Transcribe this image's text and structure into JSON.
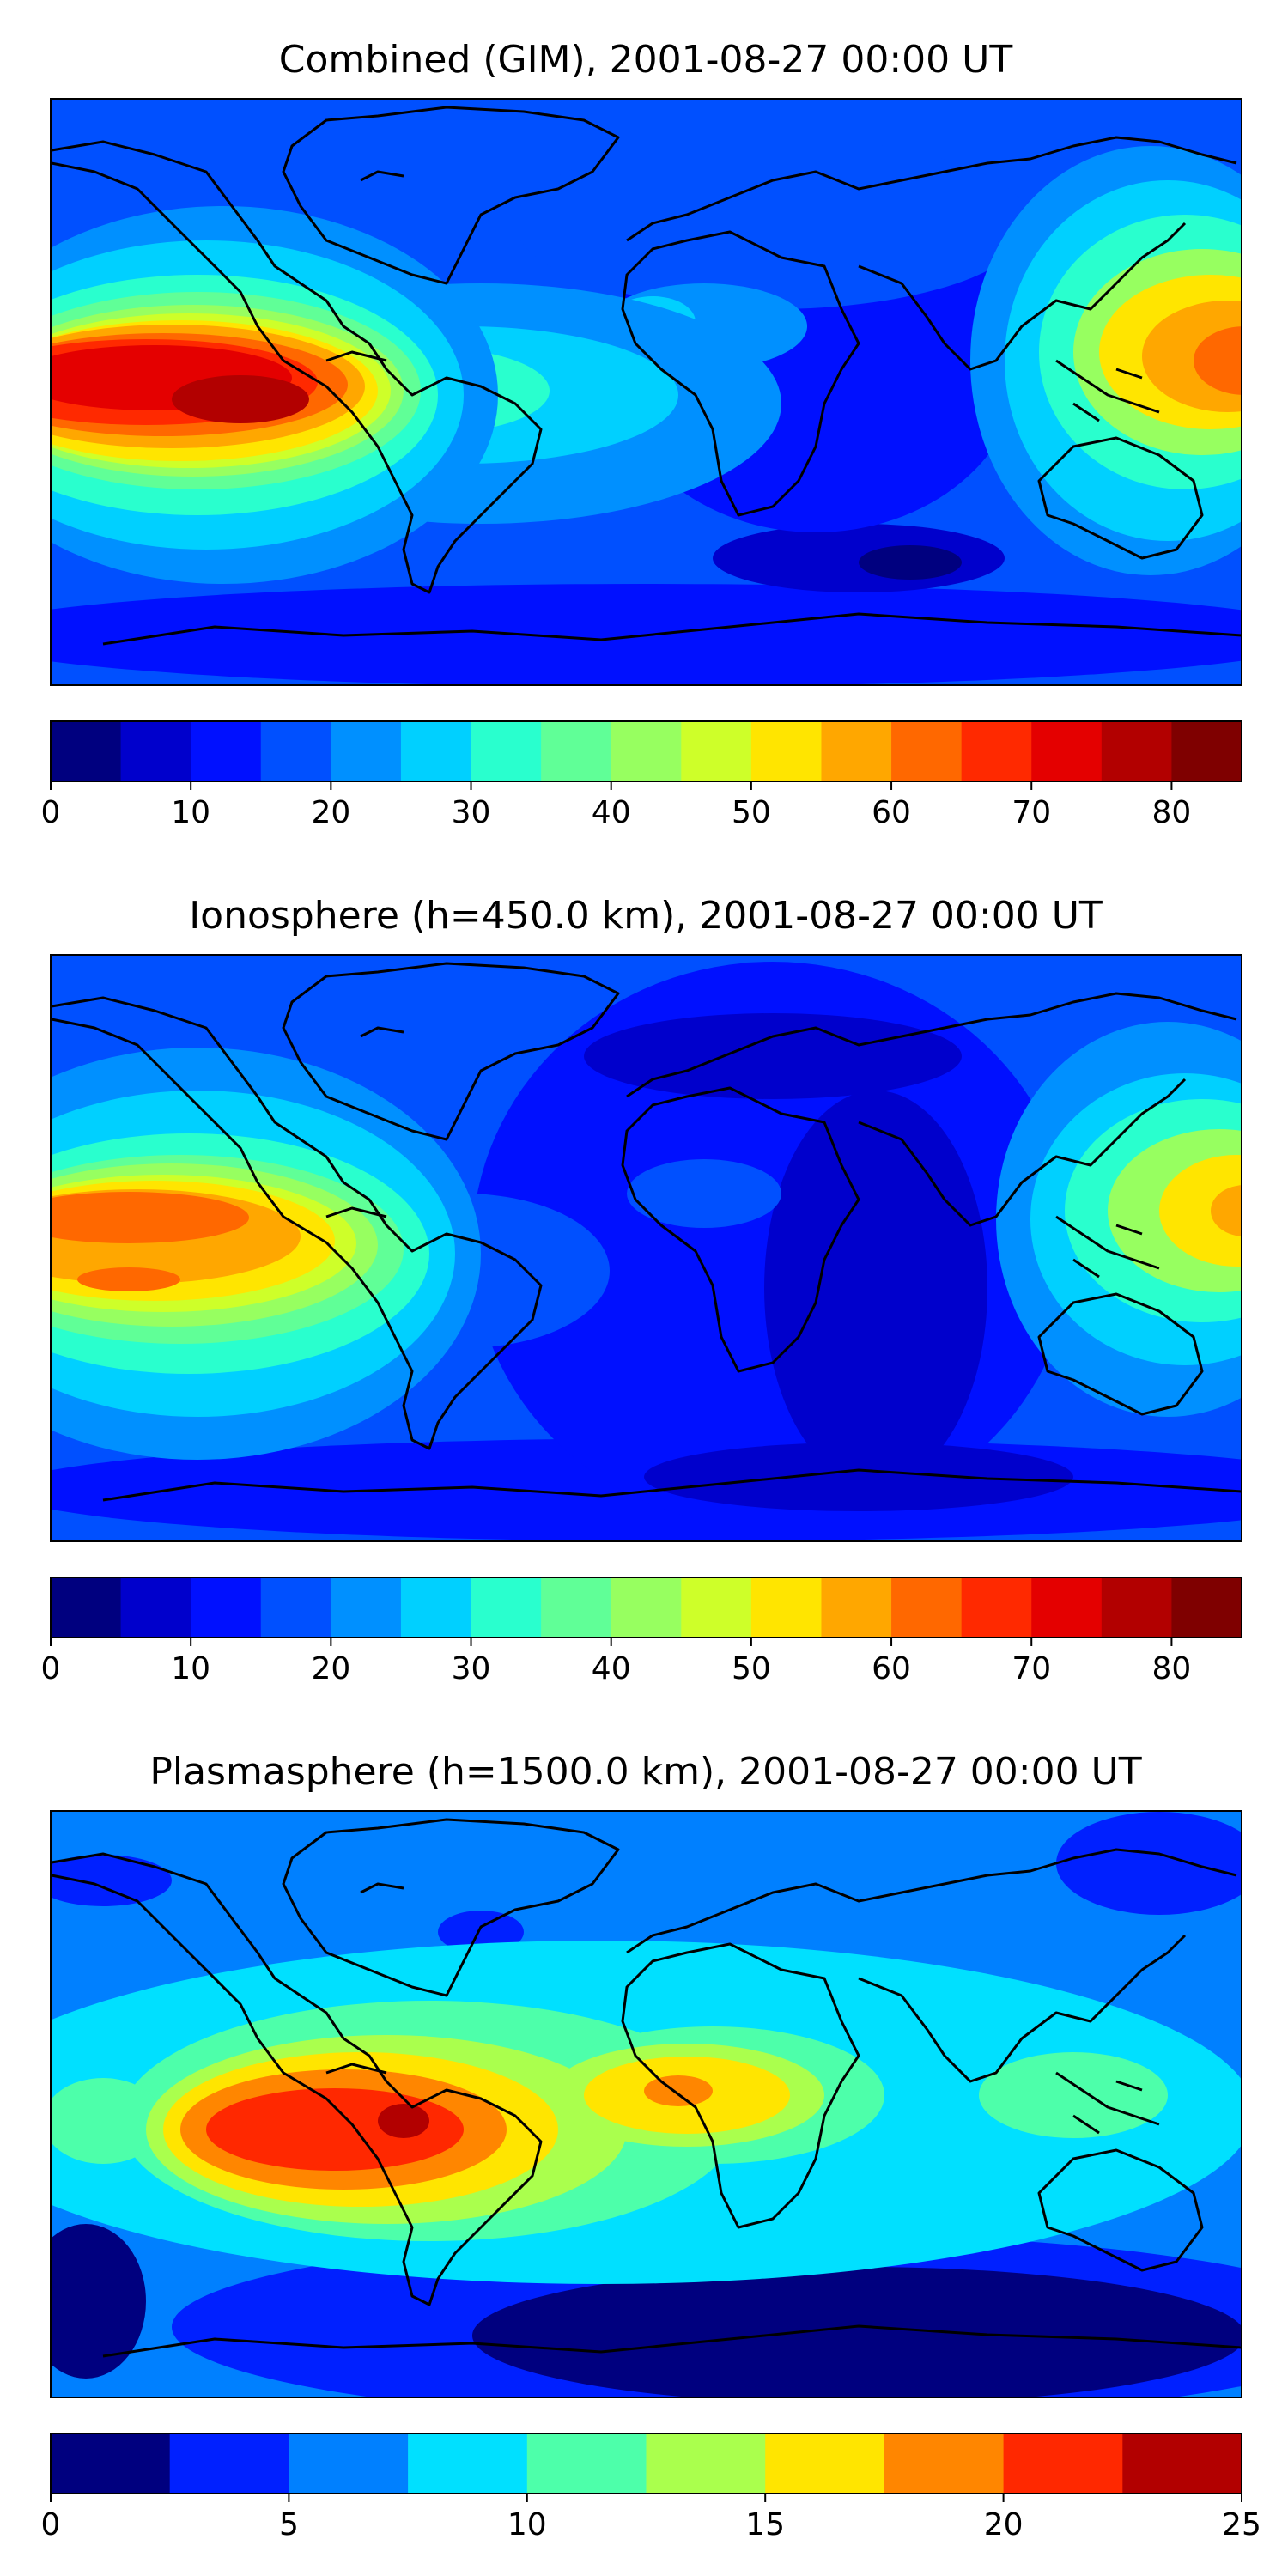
{
  "panels": [
    {
      "title": "Combined (GIM), 2001-08-27 00:00 UT",
      "colorbar": {
        "ticks": [
          "0",
          "10",
          "20",
          "30",
          "40",
          "50",
          "60",
          "70",
          "80"
        ],
        "tick_values": [
          0,
          10,
          20,
          30,
          40,
          50,
          60,
          70,
          80
        ],
        "min": 0,
        "max": 85,
        "levels": 17
      }
    },
    {
      "title": "Ionosphere  (h=450.0 km), 2001-08-27 00:00 UT",
      "colorbar": {
        "ticks": [
          "0",
          "10",
          "20",
          "30",
          "40",
          "50",
          "60",
          "70",
          "80"
        ],
        "tick_values": [
          0,
          10,
          20,
          30,
          40,
          50,
          60,
          70,
          80
        ],
        "min": 0,
        "max": 85,
        "levels": 17
      }
    },
    {
      "title": "Plasmasphere (h=1500.0 km), 2001-08-27 00:00 UT",
      "colorbar": {
        "ticks": [
          "0",
          "5",
          "10",
          "15",
          "20",
          "25"
        ],
        "tick_values": [
          0,
          5,
          10,
          15,
          20,
          25
        ],
        "min": 0,
        "max": 25,
        "levels": 10
      }
    }
  ],
  "colors": {
    "jet17": [
      "#00007f",
      "#0000cc",
      "#0010ff",
      "#0050ff",
      "#0090ff",
      "#00d0ff",
      "#29ffce",
      "#60ff97",
      "#97ff60",
      "#ceff29",
      "#ffe500",
      "#ffa700",
      "#ff6800",
      "#ff2900",
      "#e40000",
      "#b20000",
      "#7f0000"
    ],
    "jet10": [
      "#00007f",
      "#0020ff",
      "#0080ff",
      "#00e0ff",
      "#4dffaa",
      "#aaff4d",
      "#ffe500",
      "#ff8600",
      "#ff2800",
      "#b20000"
    ],
    "land_outline": "#000000"
  }
}
